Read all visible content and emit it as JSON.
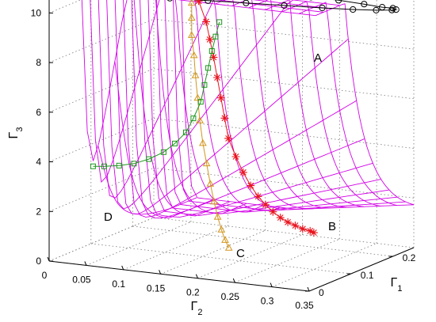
{
  "chart_data": {
    "type": "scatter",
    "chart_kind": "3d-surface-with-trajectories",
    "colors": {
      "surface": "#d200e6",
      "series_A": "#000000",
      "series_B": "#e8141e",
      "series_C": "#d2961e",
      "series_D": "#1e961e",
      "grid": "#7a7a7a"
    },
    "axes": {
      "x": {
        "label": "Γ1",
        "label_main": "Γ",
        "label_sub": "1",
        "range": [
          0,
          0.25
        ],
        "ticks": [
          "0",
          "0.1",
          "0.2"
        ],
        "tick_values": [
          0,
          0.1,
          0.2
        ]
      },
      "y": {
        "label": "Γ2",
        "label_main": "Γ",
        "label_sub": "2",
        "range": [
          0,
          0.35
        ],
        "ticks": [
          "0",
          "0.05",
          "0.1",
          "0.15",
          "0.2",
          "0.25",
          "0.3",
          "0.35"
        ],
        "tick_values": [
          0,
          0.05,
          0.1,
          0.15,
          0.2,
          0.25,
          0.3,
          0.35
        ]
      },
      "z": {
        "label": "Γ3",
        "label_main": "Γ",
        "label_sub": "3",
        "range": [
          0,
          11
        ],
        "ticks": [
          "0",
          "2",
          "4",
          "6",
          "8",
          "10"
        ],
        "tick_values": [
          0,
          2,
          4,
          6,
          8,
          10
        ]
      }
    },
    "grid": true,
    "series": [
      {
        "name": "A",
        "marker": "circle",
        "points": [
          {
            "x": 0.03,
            "y": 0.1,
            "z": 10.9
          },
          {
            "x": 0.04,
            "y": 0.14,
            "z": 10.8
          },
          {
            "x": 0.06,
            "y": 0.18,
            "z": 10.7
          },
          {
            "x": 0.08,
            "y": 0.22,
            "z": 10.6
          },
          {
            "x": 0.1,
            "y": 0.26,
            "z": 10.5
          },
          {
            "x": 0.12,
            "y": 0.3,
            "z": 10.4
          },
          {
            "x": 0.14,
            "y": 0.33,
            "z": 10.3
          },
          {
            "x": 0.16,
            "y": 0.35,
            "z": 10.2
          },
          {
            "x": 0.18,
            "y": 0.36,
            "z": 10.1
          },
          {
            "x": 0.19,
            "y": 0.36,
            "z": 10.05
          },
          {
            "x": 0.2,
            "y": 0.35,
            "z": 10.0
          },
          {
            "x": 0.21,
            "y": 0.33,
            "z": 9.9
          },
          {
            "x": 0.22,
            "y": 0.3,
            "z": 9.85
          },
          {
            "x": 0.23,
            "y": 0.26,
            "z": 9.8
          },
          {
            "x": 0.235,
            "y": 0.22,
            "z": 9.75
          },
          {
            "x": 0.24,
            "y": 0.19,
            "z": 9.7
          },
          {
            "x": 0.245,
            "y": 0.16,
            "z": 9.65
          },
          {
            "x": 0.248,
            "y": 0.14,
            "z": 9.6
          },
          {
            "x": 0.25,
            "y": 0.12,
            "z": 9.55
          },
          {
            "x": 0.25,
            "y": 0.1,
            "z": 9.5
          },
          {
            "x": 0.25,
            "y": 0.08,
            "z": 9.45
          },
          {
            "x": 0.25,
            "y": 0.06,
            "z": 9.4
          }
        ]
      },
      {
        "name": "B",
        "marker": "asterisk",
        "points": [
          {
            "x": 0.02,
            "y": 0.19,
            "z": 11.0
          },
          {
            "x": 0.02,
            "y": 0.2,
            "z": 10.2
          },
          {
            "x": 0.02,
            "y": 0.205,
            "z": 9.5
          },
          {
            "x": 0.02,
            "y": 0.21,
            "z": 8.8
          },
          {
            "x": 0.02,
            "y": 0.215,
            "z": 8.0
          },
          {
            "x": 0.02,
            "y": 0.22,
            "z": 7.2
          },
          {
            "x": 0.02,
            "y": 0.225,
            "z": 6.4
          },
          {
            "x": 0.02,
            "y": 0.23,
            "z": 5.6
          },
          {
            "x": 0.02,
            "y": 0.24,
            "z": 4.9
          },
          {
            "x": 0.02,
            "y": 0.25,
            "z": 4.3
          },
          {
            "x": 0.02,
            "y": 0.26,
            "z": 3.8
          },
          {
            "x": 0.02,
            "y": 0.27,
            "z": 3.4
          },
          {
            "x": 0.02,
            "y": 0.28,
            "z": 3.1
          },
          {
            "x": 0.02,
            "y": 0.29,
            "z": 2.85
          },
          {
            "x": 0.02,
            "y": 0.3,
            "z": 2.65
          },
          {
            "x": 0.02,
            "y": 0.31,
            "z": 2.5
          },
          {
            "x": 0.02,
            "y": 0.32,
            "z": 2.4
          },
          {
            "x": 0.02,
            "y": 0.33,
            "z": 2.3
          },
          {
            "x": 0.02,
            "y": 0.34,
            "z": 2.25
          },
          {
            "x": 0.02,
            "y": 0.345,
            "z": 2.2
          }
        ]
      },
      {
        "name": "C",
        "marker": "triangle",
        "points": [
          {
            "x": 0.03,
            "y": 0.175,
            "z": 10.8
          },
          {
            "x": 0.03,
            "y": 0.175,
            "z": 10.2
          },
          {
            "x": 0.03,
            "y": 0.175,
            "z": 9.5
          },
          {
            "x": 0.03,
            "y": 0.178,
            "z": 8.7
          },
          {
            "x": 0.03,
            "y": 0.18,
            "z": 7.9
          },
          {
            "x": 0.03,
            "y": 0.183,
            "z": 7.0
          },
          {
            "x": 0.03,
            "y": 0.186,
            "z": 6.1
          },
          {
            "x": 0.03,
            "y": 0.19,
            "z": 5.2
          },
          {
            "x": 0.03,
            "y": 0.195,
            "z": 4.4
          },
          {
            "x": 0.03,
            "y": 0.2,
            "z": 3.6
          },
          {
            "x": 0.03,
            "y": 0.205,
            "z": 2.9
          },
          {
            "x": 0.03,
            "y": 0.21,
            "z": 2.3
          },
          {
            "x": 0.03,
            "y": 0.215,
            "z": 1.8
          },
          {
            "x": 0.03,
            "y": 0.22,
            "z": 1.4
          },
          {
            "x": 0.03,
            "y": 0.225,
            "z": 1.1
          }
        ]
      },
      {
        "name": "D",
        "marker": "square",
        "points": [
          {
            "x": 0.025,
            "y": 0.215,
            "z": 10.2
          },
          {
            "x": 0.025,
            "y": 0.21,
            "z": 9.6
          },
          {
            "x": 0.025,
            "y": 0.205,
            "z": 9.0
          },
          {
            "x": 0.025,
            "y": 0.2,
            "z": 8.3
          },
          {
            "x": 0.025,
            "y": 0.195,
            "z": 7.6
          },
          {
            "x": 0.025,
            "y": 0.19,
            "z": 6.9
          },
          {
            "x": 0.025,
            "y": 0.18,
            "z": 6.2
          },
          {
            "x": 0.025,
            "y": 0.17,
            "z": 5.6
          },
          {
            "x": 0.025,
            "y": 0.155,
            "z": 5.1
          },
          {
            "x": 0.025,
            "y": 0.14,
            "z": 4.7
          },
          {
            "x": 0.025,
            "y": 0.12,
            "z": 4.35
          },
          {
            "x": 0.025,
            "y": 0.1,
            "z": 4.1
          },
          {
            "x": 0.025,
            "y": 0.08,
            "z": 3.95
          },
          {
            "x": 0.025,
            "y": 0.06,
            "z": 3.85
          },
          {
            "x": 0.025,
            "y": 0.045,
            "z": 3.8
          }
        ]
      }
    ]
  }
}
